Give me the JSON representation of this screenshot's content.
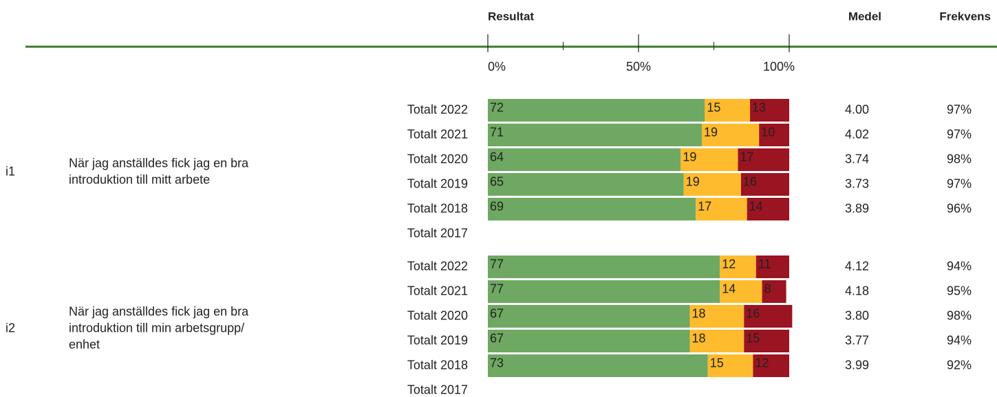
{
  "chart_data": {
    "type": "stacked_bar",
    "column_headers": {
      "result": "Resultat",
      "mean": "Medel",
      "frequency": "Frekvens"
    },
    "xlim": [
      0,
      100
    ],
    "xticks": [
      {
        "value": 0,
        "label": "0%"
      },
      {
        "value": 50,
        "label": "50%"
      },
      {
        "value": 100,
        "label": "100%"
      }
    ],
    "minor_xticks": [
      25,
      75
    ],
    "segment_colors": [
      "#6fa862",
      "#fdbb2d",
      "#9b1421"
    ],
    "groups": [
      {
        "id": "i1",
        "question": [
          "När jag anställdes fick jag en bra",
          "introduktion till mitt arbete"
        ],
        "rows": [
          {
            "label": "Totalt 2022",
            "values": [
              72,
              15,
              13
            ],
            "mean": "4.00",
            "frequency": "97%"
          },
          {
            "label": "Totalt 2021",
            "values": [
              71,
              19,
              10
            ],
            "mean": "4.02",
            "frequency": "97%"
          },
          {
            "label": "Totalt 2020",
            "values": [
              64,
              19,
              17
            ],
            "mean": "3.74",
            "frequency": "98%"
          },
          {
            "label": "Totalt 2019",
            "values": [
              65,
              19,
              16
            ],
            "mean": "3.73",
            "frequency": "97%"
          },
          {
            "label": "Totalt 2018",
            "values": [
              69,
              17,
              14
            ],
            "mean": "3.89",
            "frequency": "96%"
          },
          {
            "label": "Totalt 2017"
          }
        ]
      },
      {
        "id": "i2",
        "question": [
          "När jag anställdes fick jag en bra",
          "introduktion till min arbetsgrupp/",
          "enhet"
        ],
        "rows": [
          {
            "label": "Totalt 2022",
            "values": [
              77,
              12,
              11
            ],
            "mean": "4.12",
            "frequency": "94%"
          },
          {
            "label": "Totalt 2021",
            "values": [
              77,
              14,
              8
            ],
            "mean": "4.18",
            "frequency": "95%"
          },
          {
            "label": "Totalt 2020",
            "values": [
              67,
              18,
              16
            ],
            "mean": "3.80",
            "frequency": "98%"
          },
          {
            "label": "Totalt 2019",
            "values": [
              67,
              18,
              15
            ],
            "mean": "3.77",
            "frequency": "94%"
          },
          {
            "label": "Totalt 2018",
            "values": [
              73,
              15,
              12
            ],
            "mean": "3.99",
            "frequency": "92%"
          },
          {
            "label": "Totalt 2017"
          }
        ]
      }
    ]
  }
}
